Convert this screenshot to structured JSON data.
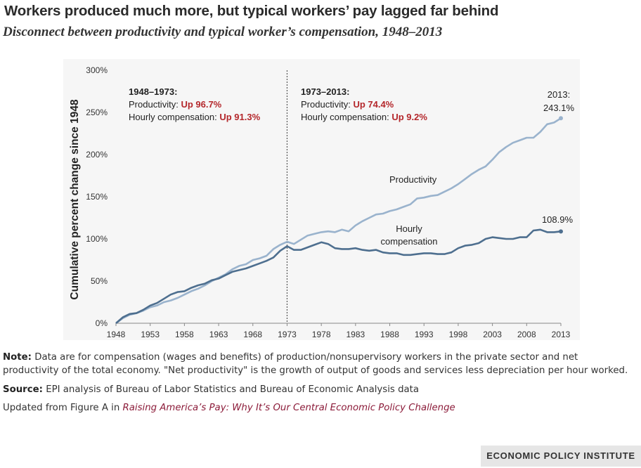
{
  "header": {
    "title": "Workers produced much more, but typical workers’ pay lagged far behind",
    "subtitle": "Disconnect between productivity and typical worker’s compensation, 1948–2013"
  },
  "chart_data": {
    "type": "line",
    "ylabel": "Cumulative percent change since 1948",
    "xlabel": "",
    "xlim": [
      1948,
      2013
    ],
    "ylim": [
      0,
      300
    ],
    "x_ticks": [
      "1948",
      "1953",
      "1958",
      "1963",
      "1968",
      "1973",
      "1978",
      "1983",
      "1988",
      "1993",
      "1998",
      "2003",
      "2008",
      "2013"
    ],
    "y_ticks": [
      "0%",
      "50%",
      "100%",
      "150%",
      "200%",
      "250%",
      "300%"
    ],
    "divider_year": 1973,
    "colors": {
      "productivity": "#9ab3cd",
      "compensation": "#4e6f8f",
      "highlight": "#b4272b",
      "divider": "#555555"
    },
    "x": [
      1948,
      1949,
      1950,
      1951,
      1952,
      1953,
      1954,
      1955,
      1956,
      1957,
      1958,
      1959,
      1960,
      1961,
      1962,
      1963,
      1964,
      1965,
      1966,
      1967,
      1968,
      1969,
      1970,
      1971,
      1972,
      1973,
      1974,
      1975,
      1976,
      1977,
      1978,
      1979,
      1980,
      1981,
      1982,
      1983,
      1984,
      1985,
      1986,
      1987,
      1988,
      1989,
      1990,
      1991,
      1992,
      1993,
      1994,
      1995,
      1996,
      1997,
      1998,
      1999,
      2000,
      2001,
      2002,
      2003,
      2004,
      2005,
      2006,
      2007,
      2008,
      2009,
      2010,
      2011,
      2012,
      2013
    ],
    "series": [
      {
        "name": "Productivity",
        "values": [
          0,
          6,
          10,
          12,
          15,
          19,
          21,
          25,
          27,
          30,
          34,
          38,
          41,
          45,
          50,
          54,
          58,
          64,
          68,
          70,
          75,
          77,
          80,
          88,
          93,
          96.7,
          94,
          99,
          104,
          106,
          108,
          109,
          108,
          111,
          109,
          116,
          121,
          125,
          129,
          130,
          133,
          135,
          138,
          141,
          148,
          149,
          151,
          152,
          156,
          160,
          165,
          171,
          177,
          182,
          186,
          194,
          203,
          209,
          214,
          217,
          220,
          220,
          227,
          236,
          238,
          243.1
        ]
      },
      {
        "name": "Hourly compensation",
        "values": [
          0,
          7,
          11,
          12,
          16,
          21,
          24,
          29,
          34,
          37,
          38,
          42,
          45,
          47,
          51,
          53,
          57,
          61,
          63,
          65,
          68,
          71,
          74,
          78,
          86,
          91.3,
          87,
          87,
          90,
          93,
          96,
          94,
          89,
          88,
          88,
          89,
          87,
          86,
          87,
          84,
          83,
          83,
          81,
          81,
          82,
          83,
          83,
          82,
          82,
          84,
          89,
          92,
          93,
          95,
          100,
          102,
          101,
          100,
          100,
          102,
          102,
          110,
          111,
          108,
          108,
          108.9
        ]
      }
    ],
    "annotations": {
      "left_period": "1948–1973:",
      "right_period": "1973–2013:",
      "productivity_label": "Productivity:",
      "compensation_label": "Hourly compensation:",
      "left_prod_change": "Up 96.7%",
      "left_comp_change": "Up 91.3%",
      "right_prod_change": "Up 74.4%",
      "right_comp_change": "Up 9.2%",
      "prod_series_label": "Productivity",
      "comp_series_label_1": "Hourly",
      "comp_series_label_2": "compensation",
      "end_prod_year": "2013:",
      "end_prod_value": "243.1%",
      "end_comp_value": "108.9%"
    }
  },
  "notes": {
    "note_label": "Note:",
    "note_text": "Data are for compensation (wages and benefits) of production/nonsupervisory workers in the private sector and net productivity of the total economy. \"Net productivity\" is the growth of output of goods and services less depreciation per hour worked.",
    "source_label": "Source:",
    "source_text": "EPI analysis of Bureau of Labor Statistics and Bureau of Economic Analysis data",
    "updated_text": "Updated from Figure A in",
    "updated_link": "Raising America’s Pay: Why It’s Our Central Economic Policy Challenge"
  },
  "footer": {
    "brand": "ECONOMIC POLICY INSTITUTE"
  }
}
